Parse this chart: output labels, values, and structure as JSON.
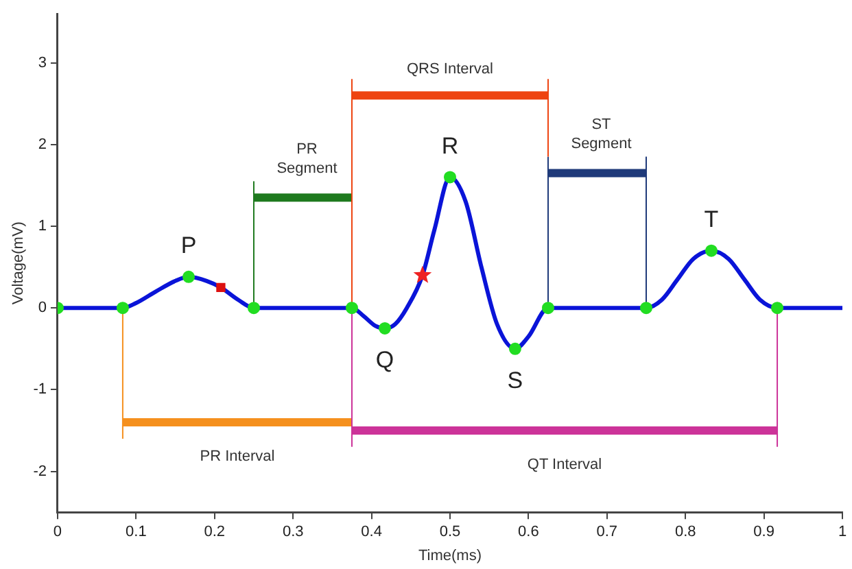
{
  "chart_data": {
    "type": "line",
    "xlabel": "Time(ms)",
    "ylabel": "Voltage(mV)",
    "xlim": [
      0,
      1
    ],
    "xticks": [
      0,
      0.1,
      0.2,
      0.3,
      0.4,
      0.5,
      0.6,
      0.7,
      0.8,
      0.9,
      1
    ],
    "ylim": [
      -2.5,
      3.6
    ],
    "yticks": [
      -2,
      -1,
      0,
      1,
      2,
      3
    ],
    "grid": false,
    "legend": false,
    "series": [
      {
        "color": "#0a14d8",
        "marker": "none",
        "x": [
          0,
          0.083,
          0.1,
          0.125,
          0.15,
          0.167,
          0.19,
          0.208,
          0.23,
          0.25,
          0.375,
          0.39,
          0.405,
          0.417,
          0.43,
          0.445,
          0.465,
          0.48,
          0.5,
          0.52,
          0.54,
          0.56,
          0.583,
          0.6,
          0.625,
          0.75,
          0.77,
          0.79,
          0.81,
          0.833,
          0.855,
          0.875,
          0.895,
          0.917,
          1
        ],
        "values": [
          0,
          0,
          0.06,
          0.2,
          0.33,
          0.38,
          0.33,
          0.25,
          0.1,
          0,
          0,
          -0.1,
          -0.22,
          -0.25,
          -0.2,
          0,
          0.4,
          0.95,
          1.6,
          1.3,
          0.5,
          -0.2,
          -0.5,
          -0.35,
          0,
          0,
          0.1,
          0.35,
          0.6,
          0.7,
          0.6,
          0.35,
          0.1,
          0,
          0
        ]
      },
      {
        "type": "scatter",
        "color": "#22dd22",
        "marker": "circle",
        "x": [
          0,
          0.083,
          0.167,
          0.25,
          0.375,
          0.417,
          0.5,
          0.583,
          0.625,
          0.75,
          0.833,
          0.917
        ],
        "values": [
          0,
          0,
          0.38,
          0,
          0,
          -0.25,
          1.6,
          -0.5,
          0,
          0,
          0.7,
          0
        ]
      },
      {
        "type": "scatter",
        "color": "#dd1111",
        "marker": "square",
        "x": [
          0.208
        ],
        "values": [
          0.25
        ]
      },
      {
        "type": "scatter",
        "color": "#ee2222",
        "marker": "star",
        "x": [
          0.465
        ],
        "values": [
          0.4
        ]
      },
      {
        "color": "#1e7a1e",
        "marker": "none",
        "x": [
          0.25,
          0.25
        ],
        "values": [
          0,
          1.55
        ]
      },
      {
        "color": "#ee4411",
        "marker": "none",
        "x": [
          0.375,
          0.375
        ],
        "values": [
          0,
          2.8
        ]
      },
      {
        "color": "#ee4411",
        "marker": "none",
        "x": [
          0.625,
          0.625
        ],
        "values": [
          1.85,
          2.8
        ]
      },
      {
        "color": "#1f3a7a",
        "marker": "none",
        "x": [
          0.625,
          0.625
        ],
        "values": [
          0,
          1.85
        ]
      },
      {
        "color": "#1f3a7a",
        "marker": "none",
        "x": [
          0.75,
          0.75
        ],
        "values": [
          0,
          1.85
        ]
      },
      {
        "color": "#f5901e",
        "marker": "none",
        "x": [
          0.083,
          0.083
        ],
        "values": [
          0,
          -1.6
        ]
      },
      {
        "color": "#cc3399",
        "marker": "none",
        "x": [
          0.375,
          0.375
        ],
        "values": [
          0,
          -1.7
        ]
      },
      {
        "color": "#cc3399",
        "marker": "none",
        "x": [
          0.917,
          0.917
        ],
        "values": [
          0,
          -1.7
        ]
      },
      {
        "name": "PR Segment",
        "color": "#1e7a1e",
        "marker": "none",
        "x": [
          0.25,
          0.375
        ],
        "values": [
          1.35,
          1.35
        ]
      },
      {
        "name": "QRS Interval",
        "color": "#ee4411",
        "marker": "none",
        "x": [
          0.375,
          0.625
        ],
        "values": [
          2.6,
          2.6
        ]
      },
      {
        "name": "ST Segment",
        "color": "#1f3a7a",
        "marker": "none",
        "x": [
          0.625,
          0.75
        ],
        "values": [
          1.65,
          1.65
        ]
      },
      {
        "name": "PR Interval",
        "color": "#f5901e",
        "marker": "none",
        "x": [
          0.083,
          0.375
        ],
        "values": [
          -1.4,
          -1.4
        ]
      },
      {
        "name": "QT Interval",
        "color": "#cc3399",
        "marker": "none",
        "x": [
          0.375,
          0.917
        ],
        "values": [
          -1.5,
          -1.5
        ]
      }
    ],
    "annotations": [
      {
        "text": "P",
        "x": 0.167,
        "y": 0.38
      },
      {
        "text": "Q",
        "x": 0.417,
        "y": -0.25
      },
      {
        "text": "R",
        "x": 0.5,
        "y": 1.6
      },
      {
        "text": "S",
        "x": 0.583,
        "y": -0.5
      },
      {
        "text": "T",
        "x": 0.833,
        "y": 0.7
      }
    ]
  }
}
